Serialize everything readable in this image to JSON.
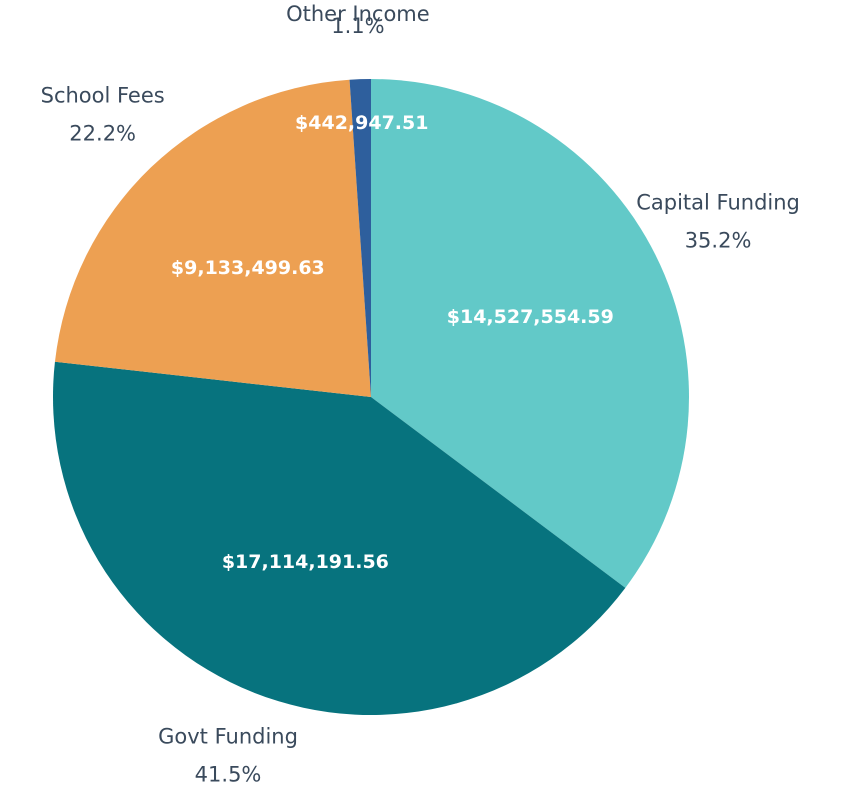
{
  "chart_data": {
    "type": "pie",
    "categories": [
      "Capital Funding",
      "Govt Funding",
      "School Fees",
      "Other Income"
    ],
    "values": [
      14527554.59,
      17114191.56,
      9133499.63,
      442947.51
    ],
    "value_labels": [
      "$14,527,554.59",
      "$17,114,191.56",
      "$9,133,499.63",
      "$442,947.51"
    ],
    "percent_labels": [
      "35.2%",
      "41.5%",
      "22.2%",
      "1.1%"
    ],
    "colors": [
      "#62c9c8",
      "#07737e",
      "#eda052",
      "#2e5f9d"
    ]
  }
}
